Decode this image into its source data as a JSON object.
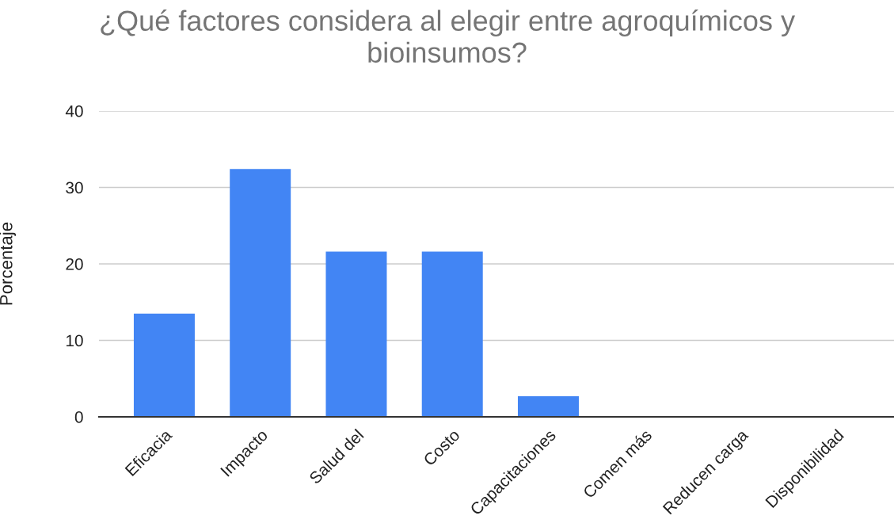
{
  "chart_data": {
    "type": "bar",
    "title": "¿Qué factores considera al elegir entre agroquímicos y bioinsumos?",
    "ylabel": "Porcentaje",
    "categories": [
      "Eficacia",
      "Impacto",
      "Salud del",
      "Costo",
      "Capacitaciones",
      "Comen más",
      "Reducen carga",
      "Disponibilidad"
    ],
    "values": [
      13.5,
      32.4,
      21.6,
      21.6,
      2.7,
      0,
      0,
      0
    ],
    "color": "#4285f4",
    "ylim": [
      0,
      40
    ],
    "yticks": [
      0,
      10,
      20,
      30,
      40
    ],
    "grid": "y"
  }
}
